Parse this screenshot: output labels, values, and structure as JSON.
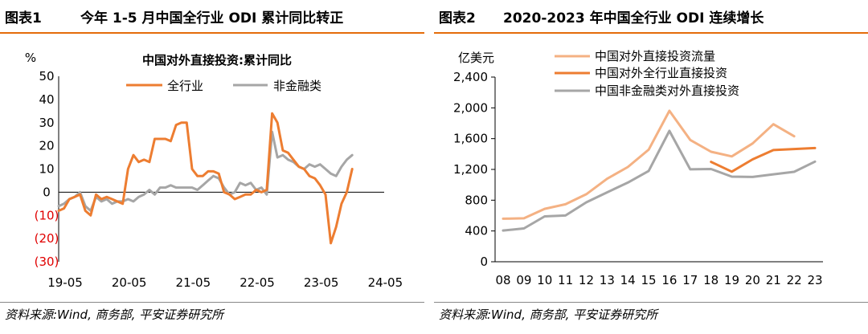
{
  "left": {
    "figure_label": "图表1",
    "header_title": "今年 1-5 月中国全行业 ODI 累计同比转正",
    "source": "资料来源:Wind, 商务部, 平安证券研究所"
  },
  "right": {
    "figure_label": "图表2",
    "header_title": "2020-2023 年中国全行业 ODI 连续增长",
    "source": "资料来源:Wind, 商务部, 平安证券研究所"
  },
  "chart_data": [
    {
      "type": "line",
      "title": "中国对外直接投资:累计同比",
      "ylabel": "%",
      "ylim": [
        -30,
        50
      ],
      "yticks": [
        50,
        40,
        30,
        20,
        10,
        0,
        -10,
        -20,
        -30
      ],
      "ytick_labels": [
        "50",
        "40",
        "30",
        "20",
        "10",
        "0",
        "(10)",
        "(20)",
        "(30)"
      ],
      "xlim": [
        0,
        61
      ],
      "xticks": [
        0,
        12,
        24,
        36,
        48,
        60
      ],
      "xtick_labels": [
        "19-05",
        "20-05",
        "21-05",
        "22-05",
        "23-05",
        "24-05"
      ],
      "legend_position": "top",
      "series": [
        {
          "name": "全行业",
          "color": "#ed7d31",
          "x": [
            0,
            1,
            2,
            3,
            4,
            5,
            6,
            7,
            8,
            9,
            10,
            11,
            12,
            13,
            14,
            15,
            16,
            17,
            18,
            19,
            20,
            21,
            22,
            23,
            24,
            25,
            26,
            27,
            28,
            29,
            30,
            31,
            32,
            33,
            34,
            35,
            36,
            37,
            38,
            39,
            40,
            41,
            42,
            43,
            44,
            45,
            46,
            47,
            48,
            49,
            50,
            51,
            52,
            53,
            54,
            55,
            56,
            57,
            58,
            59,
            60,
            61
          ],
          "y": [
            -8,
            -7,
            -3,
            -2,
            -1,
            -8,
            -10,
            -1,
            -3,
            -2,
            -3,
            -4,
            -5,
            10,
            16,
            13,
            14,
            13,
            23,
            23,
            23,
            22,
            29,
            30,
            30,
            10,
            7,
            7,
            9,
            9,
            8,
            0,
            -1,
            -3,
            -2,
            -1,
            -1,
            1,
            0,
            1,
            34,
            30,
            18,
            17,
            14,
            11,
            10,
            7,
            6,
            3,
            -1,
            -22,
            -15,
            -5,
            0,
            10,
            null,
            null,
            null,
            null,
            null,
            null
          ]
        },
        {
          "name": "非金融类",
          "color": "#a6a6a6",
          "x": [
            0,
            1,
            2,
            3,
            4,
            5,
            6,
            7,
            8,
            9,
            10,
            11,
            12,
            13,
            14,
            15,
            16,
            17,
            18,
            19,
            20,
            21,
            22,
            23,
            24,
            25,
            26,
            27,
            28,
            29,
            30,
            31,
            32,
            33,
            34,
            35,
            36,
            37,
            38,
            39,
            40,
            41,
            42,
            43,
            44,
            45,
            46,
            47,
            48,
            49,
            50,
            51,
            52,
            53,
            54,
            55,
            56,
            57,
            58,
            59,
            60,
            61
          ],
          "y": [
            -6,
            -5,
            -3,
            -2,
            0,
            -6,
            -8,
            -2,
            -4,
            -3,
            -5,
            -4,
            -4,
            -3,
            -4,
            -2,
            -1,
            1,
            -1,
            2,
            2,
            3,
            2,
            2,
            2,
            2,
            1,
            3,
            5,
            7,
            6,
            2,
            -1,
            0,
            4,
            3,
            4,
            1,
            2,
            -1,
            26,
            15,
            16,
            14,
            13,
            11,
            10,
            12,
            11,
            12,
            10,
            8,
            7,
            11,
            14,
            16,
            null,
            null,
            null,
            null,
            null,
            null
          ]
        }
      ]
    },
    {
      "type": "line",
      "ylabel": "亿美元",
      "ylim": [
        0,
        2400
      ],
      "yticks": [
        0,
        400,
        800,
        1200,
        1600,
        2000,
        2400
      ],
      "ytick_labels": [
        "0",
        "400",
        "800",
        "1,200",
        "1,600",
        "2,000",
        "2,400"
      ],
      "x": [
        "08",
        "09",
        "10",
        "11",
        "12",
        "13",
        "14",
        "15",
        "16",
        "17",
        "18",
        "19",
        "20",
        "21",
        "22",
        "23"
      ],
      "legend_position": "top-left",
      "series": [
        {
          "name": "中国对外直接投资流量",
          "color": "#f4b183",
          "values": [
            559,
            565,
            688,
            747,
            878,
            1078,
            1231,
            1457,
            1962,
            1583,
            1430,
            1369,
            1537,
            1788,
            1631,
            null
          ]
        },
        {
          "name": "中国对外全行业直接投资",
          "color": "#ed7d31",
          "values": [
            null,
            null,
            null,
            null,
            null,
            null,
            null,
            null,
            null,
            null,
            1298,
            1171,
            1330,
            1452,
            1465,
            1478
          ]
        },
        {
          "name": "中国非金融类对外直接投资",
          "color": "#a6a6a6",
          "values": [
            406,
            433,
            590,
            601,
            772,
            902,
            1029,
            1180,
            1701,
            1201,
            1205,
            1106,
            1102,
            1136,
            1169,
            1301
          ]
        }
      ]
    }
  ]
}
